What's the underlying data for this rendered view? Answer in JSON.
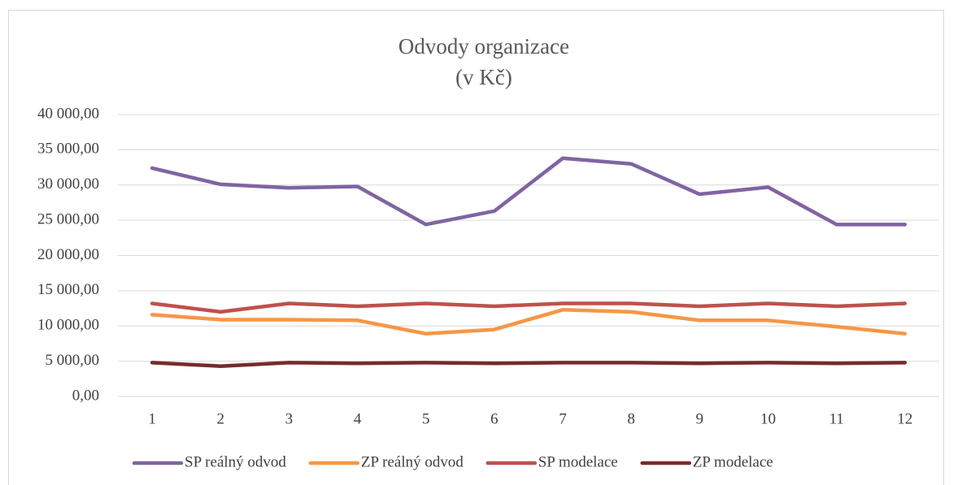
{
  "chart_data": {
    "type": "line",
    "title": "Odvody organizace",
    "subtitle": "(v Kč)",
    "categories": [
      "1",
      "2",
      "3",
      "4",
      "5",
      "6",
      "7",
      "8",
      "9",
      "10",
      "11",
      "12"
    ],
    "series": [
      {
        "name": "SP reálný odvod",
        "color": "#8064a2",
        "values": [
          32400,
          30100,
          29600,
          29800,
          24400,
          26300,
          33800,
          33000,
          28700,
          29700,
          24400,
          24400
        ]
      },
      {
        "name": "ZP reálný odvod",
        "color": "#f79646",
        "values": [
          11600,
          10900,
          10900,
          10800,
          8900,
          9500,
          12300,
          12000,
          10800,
          10800,
          9900,
          8900
        ]
      },
      {
        "name": "SP modelace",
        "color": "#c0504d",
        "values": [
          13200,
          12000,
          13200,
          12800,
          13200,
          12800,
          13200,
          13200,
          12800,
          13200,
          12800,
          13200
        ]
      },
      {
        "name": "ZP modelace",
        "color": "#772c2a",
        "values": [
          4800,
          4300,
          4800,
          4700,
          4800,
          4700,
          4800,
          4800,
          4700,
          4800,
          4700,
          4800
        ]
      }
    ],
    "ylim": [
      0,
      40000
    ],
    "yticks": [
      {
        "value": 0,
        "label": "0,00"
      },
      {
        "value": 5000,
        "label": "5 000,00"
      },
      {
        "value": 10000,
        "label": "10 000,00"
      },
      {
        "value": 15000,
        "label": "15 000,00"
      },
      {
        "value": 20000,
        "label": "20 000,00"
      },
      {
        "value": 25000,
        "label": "25 000,00"
      },
      {
        "value": 30000,
        "label": "30 000,00"
      },
      {
        "value": 35000,
        "label": "35 000,00"
      },
      {
        "value": 40000,
        "label": "40 000,00"
      }
    ],
    "grid": true,
    "legend": "bottom"
  }
}
